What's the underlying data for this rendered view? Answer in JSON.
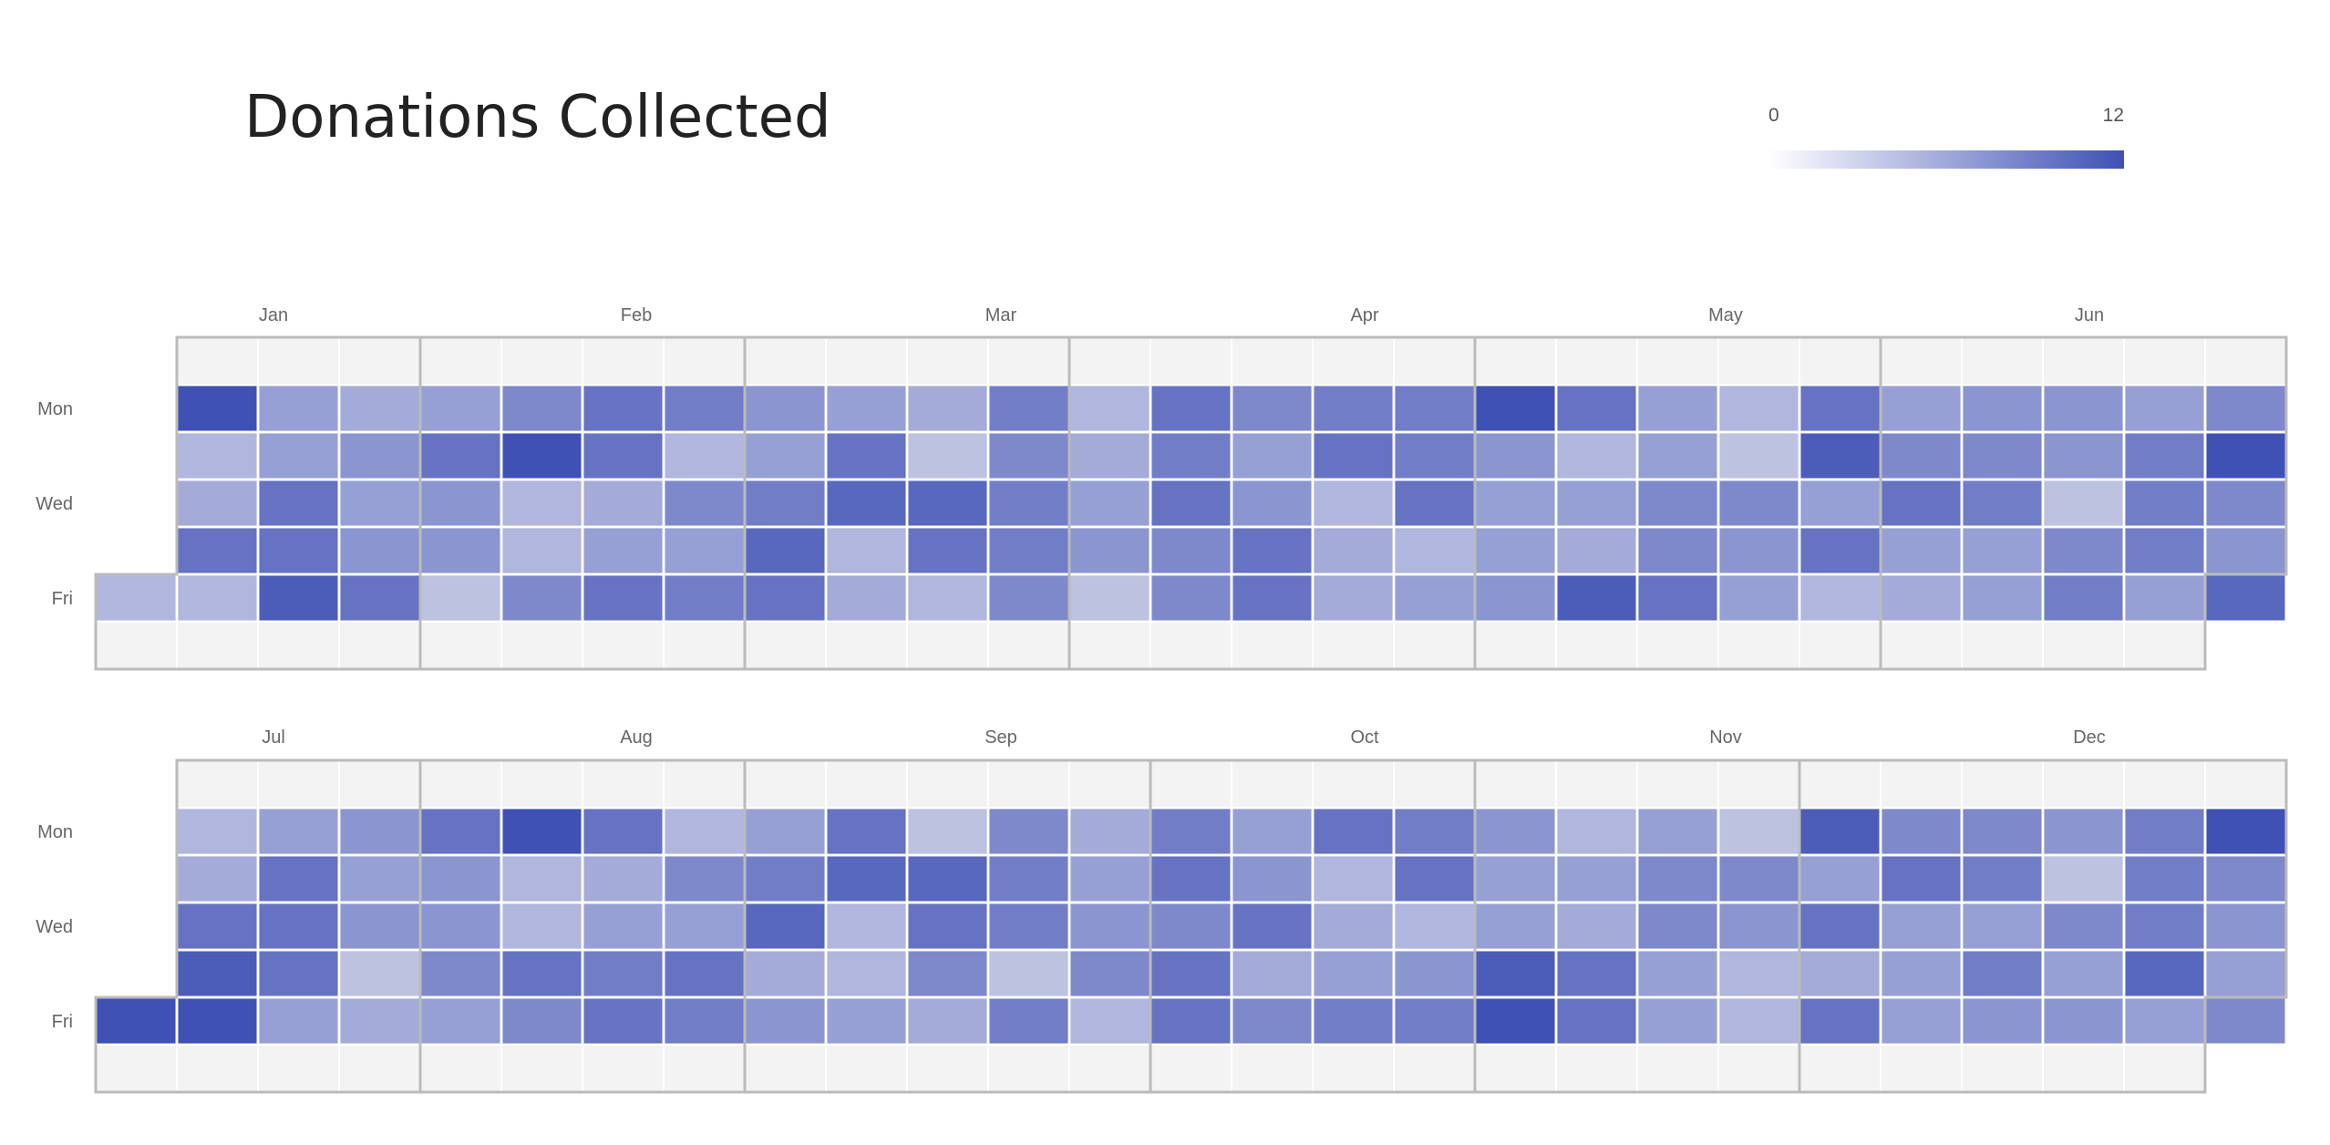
{
  "title": "Donations Collected",
  "legend": {
    "min_label": "0",
    "max_label": "12"
  },
  "colors": {
    "empty": "#f3f3f3",
    "low": "#d6d8ea",
    "high": "#3f51b5",
    "border": "#bbbbbb",
    "gap": "#ffffff"
  },
  "chart_data": {
    "type": "heatmap",
    "title": "Donations Collected",
    "color_scale": {
      "min": 0,
      "max": 12
    },
    "day_labels": [
      "Mon",
      "Wed",
      "Fri"
    ],
    "panels": [
      {
        "months": [
          "Jan",
          "Feb",
          "Mar",
          "Apr",
          "May",
          "Jun"
        ],
        "values": [
          [
            12,
            5,
            4,
            5,
            7,
            9,
            8,
            6,
            5,
            4,
            8,
            3,
            9,
            7,
            8,
            8,
            12,
            9,
            5,
            3,
            9,
            5,
            6,
            6,
            5,
            7
          ],
          [
            3,
            5,
            6,
            9,
            12,
            9,
            3,
            5,
            9,
            2,
            7,
            4,
            8,
            5,
            9,
            8,
            6,
            3,
            5,
            2,
            11,
            7,
            7,
            6,
            8,
            12
          ],
          [
            4,
            9,
            5,
            6,
            3,
            4,
            7,
            8,
            10,
            10,
            8,
            5,
            9,
            6,
            3,
            9,
            5,
            5,
            7,
            7,
            5,
            9,
            8,
            2,
            8,
            7
          ],
          [
            9,
            9,
            6,
            6,
            3,
            5,
            5,
            10,
            3,
            9,
            8,
            6,
            7,
            9,
            4,
            3,
            5,
            4,
            7,
            6,
            9,
            5,
            5,
            7,
            8,
            6
          ],
          [
            3,
            11,
            9,
            2,
            7,
            9,
            8,
            9,
            4,
            3,
            7,
            2,
            7,
            9,
            4,
            5,
            6,
            11,
            9,
            5,
            3,
            4,
            5,
            8,
            5,
            10
          ]
        ],
        "first_weekday_fri": 3,
        "last_week_partial_rows": 4
      },
      {
        "months": [
          "Jul",
          "Aug",
          "Sep",
          "Oct",
          "Nov",
          "Dec"
        ],
        "values": [
          [
            3,
            5,
            6,
            9,
            12,
            9,
            3,
            5,
            9,
            2,
            7,
            4,
            8,
            5,
            9,
            8,
            6,
            3,
            5,
            2,
            11,
            7,
            7,
            6,
            8,
            12
          ],
          [
            4,
            9,
            5,
            6,
            3,
            4,
            7,
            8,
            10,
            10,
            8,
            5,
            9,
            6,
            3,
            9,
            5,
            5,
            7,
            7,
            5,
            9,
            8,
            2,
            8,
            7
          ],
          [
            9,
            9,
            6,
            6,
            3,
            5,
            5,
            10,
            3,
            9,
            8,
            6,
            7,
            9,
            4,
            3,
            5,
            4,
            7,
            6,
            9,
            5,
            5,
            7,
            8,
            6
          ],
          [
            11,
            9,
            2,
            7,
            9,
            8,
            9,
            4,
            3,
            7,
            2,
            7,
            9,
            4,
            5,
            6,
            11,
            9,
            5,
            3,
            4,
            5,
            8,
            5,
            10,
            5
          ],
          [
            12,
            5,
            4,
            5,
            7,
            9,
            8,
            6,
            5,
            4,
            8,
            3,
            9,
            7,
            8,
            8,
            12,
            9,
            5,
            3,
            9,
            5,
            6,
            6,
            5,
            7,
            11
          ]
        ]
      }
    ]
  }
}
